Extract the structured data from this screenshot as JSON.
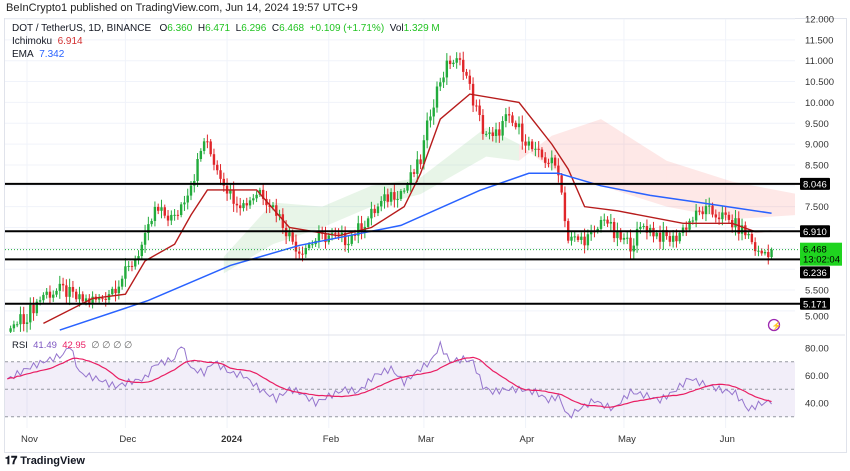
{
  "header": {
    "published": "BeInCrypto1 published on TradingView.com, Jun 14, 2024 19:57 UTC+9"
  },
  "legend": {
    "symbol": "DOT / TetherUS, 1D, BINANCE",
    "o_label": "O",
    "o": "6.360",
    "h_label": "H",
    "h": "6.471",
    "l_label": "L",
    "l": "6.296",
    "c_label": "C",
    "c": "6.468",
    "change": "+0.109 (+1.71%)",
    "vol_label": "Vol",
    "vol": "1.329 M",
    "ichimoku_label": "Ichimoku",
    "ichimoku": "6.914",
    "ema_label": "EMA",
    "ema": "7.342"
  },
  "rsi_legend": {
    "label": "RSI",
    "value": "41.49",
    "ma": "42.95",
    "extra": "∅ ∅ ∅ ∅"
  },
  "price_axis": [
    "12.000",
    "11.500",
    "11.000",
    "10.500",
    "10.000",
    "9.500",
    "9.000",
    "8.500",
    "7.500",
    "5.500",
    "5.000"
  ],
  "rsi_axis": [
    "80.00",
    "60.00",
    "40.00"
  ],
  "time_axis": [
    {
      "label": "Nov",
      "day": 0
    },
    {
      "label": "Dec",
      "day": 30
    },
    {
      "label": "2024",
      "day": 61,
      "bold": true
    },
    {
      "label": "Feb",
      "day": 92
    },
    {
      "label": "Mar",
      "day": 121
    },
    {
      "label": "Apr",
      "day": 152
    },
    {
      "label": "May",
      "day": 182
    },
    {
      "label": "Jun",
      "day": 213
    }
  ],
  "levels": [
    "8.046",
    "6.910",
    "6.236",
    "5.171"
  ],
  "current_price": {
    "price": "6.468",
    "countdown": "13:02:04"
  },
  "footer": {
    "brand": "TradingView"
  },
  "colors": {
    "up": "#22ab3c",
    "down": "#e0262a",
    "ema": "#2962ff",
    "base": "#b71c1c",
    "rsi": "#9575cd",
    "rsi_ma": "#e91e63",
    "price_tag": "#1fd41f"
  },
  "chart_data": {
    "type": "candlestick",
    "title": "DOT / TetherUS, 1D, BINANCE",
    "x_unit": "days since 2023-11-01",
    "ylim": [
      4.8,
      12.2
    ],
    "close": [
      [
        -6,
        4.5
      ],
      [
        0,
        4.9
      ],
      [
        5,
        5.4
      ],
      [
        11,
        5.5
      ],
      [
        16,
        5.25
      ],
      [
        22,
        5.25
      ],
      [
        27,
        5.6
      ],
      [
        31,
        6.0
      ],
      [
        36,
        6.7
      ],
      [
        39,
        7.4
      ],
      [
        45,
        7.2
      ],
      [
        51,
        8.25
      ],
      [
        54,
        9.1
      ],
      [
        57,
        8.6
      ],
      [
        62,
        7.8
      ],
      [
        66,
        7.55
      ],
      [
        71,
        7.9
      ],
      [
        76,
        7.4
      ],
      [
        80,
        6.8
      ],
      [
        83,
        6.45
      ],
      [
        88,
        6.7
      ],
      [
        92,
        6.8
      ],
      [
        97,
        6.7
      ],
      [
        101,
        6.95
      ],
      [
        106,
        7.4
      ],
      [
        111,
        7.8
      ],
      [
        115,
        7.9
      ],
      [
        120,
        8.6
      ],
      [
        123,
        9.8
      ],
      [
        126,
        10.55
      ],
      [
        129,
        11.0
      ],
      [
        133,
        10.9
      ],
      [
        136,
        10.05
      ],
      [
        139,
        9.35
      ],
      [
        142,
        9.1
      ],
      [
        146,
        9.6
      ],
      [
        150,
        9.35
      ],
      [
        155,
        8.75
      ],
      [
        159,
        8.6
      ],
      [
        162,
        8.4
      ],
      [
        165,
        6.7
      ],
      [
        168,
        6.7
      ],
      [
        173,
        6.8
      ],
      [
        176,
        7.3
      ],
      [
        179,
        6.8
      ],
      [
        184,
        6.6
      ],
      [
        188,
        7.05
      ],
      [
        193,
        6.8
      ],
      [
        197,
        6.7
      ],
      [
        202,
        7.15
      ],
      [
        206,
        7.4
      ],
      [
        211,
        7.3
      ],
      [
        216,
        7.05
      ],
      [
        220,
        6.8
      ],
      [
        223,
        6.36
      ],
      [
        227,
        6.468
      ]
    ],
    "ema": [
      [
        10,
        4.54
      ],
      [
        37,
        5.25
      ],
      [
        62,
        6.09
      ],
      [
        83,
        6.57
      ],
      [
        114,
        7.05
      ],
      [
        138,
        7.89
      ],
      [
        153,
        8.3
      ],
      [
        162,
        8.3
      ],
      [
        175,
        8.0
      ],
      [
        190,
        7.77
      ],
      [
        205,
        7.6
      ],
      [
        227,
        7.342
      ]
    ],
    "ichimoku_base": [
      [
        5,
        4.7
      ],
      [
        20,
        5.3
      ],
      [
        30,
        5.4
      ],
      [
        36,
        6.2
      ],
      [
        45,
        6.6
      ],
      [
        50,
        7.3
      ],
      [
        55,
        7.9
      ],
      [
        70,
        7.9
      ],
      [
        80,
        7.0
      ],
      [
        95,
        6.8
      ],
      [
        105,
        7.0
      ],
      [
        115,
        7.5
      ],
      [
        120,
        8.3
      ],
      [
        126,
        9.6
      ],
      [
        135,
        10.2
      ],
      [
        150,
        10.0
      ],
      [
        160,
        9.0
      ],
      [
        165,
        8.4
      ],
      [
        170,
        7.5
      ],
      [
        180,
        7.4
      ],
      [
        200,
        7.1
      ],
      [
        215,
        7.1
      ],
      [
        222,
        6.9
      ],
      [
        227,
        6.914
      ]
    ],
    "cloud": [
      [
        60,
        6.3,
        5.9
      ],
      [
        75,
        7.6,
        6.6
      ],
      [
        90,
        7.5,
        7.0
      ],
      [
        105,
        8.0,
        7.5
      ],
      [
        120,
        8.2,
        7.8
      ],
      [
        140,
        9.4,
        8.7
      ],
      [
        150,
        9.0,
        8.6
      ],
      [
        160,
        8.4,
        9.2
      ],
      [
        175,
        8.0,
        9.6
      ],
      [
        195,
        7.5,
        8.6
      ],
      [
        215,
        7.2,
        8.1
      ],
      [
        235,
        7.3,
        7.8
      ]
    ],
    "rsi": [
      [
        -6,
        57
      ],
      [
        0,
        65
      ],
      [
        5,
        70
      ],
      [
        11,
        75
      ],
      [
        13,
        82
      ],
      [
        16,
        62
      ],
      [
        22,
        57
      ],
      [
        27,
        52
      ],
      [
        31,
        55
      ],
      [
        36,
        58
      ],
      [
        39,
        68
      ],
      [
        45,
        72
      ],
      [
        47,
        83
      ],
      [
        50,
        65
      ],
      [
        54,
        62
      ],
      [
        57,
        70
      ],
      [
        62,
        62
      ],
      [
        66,
        60
      ],
      [
        71,
        50
      ],
      [
        76,
        43
      ],
      [
        80,
        50
      ],
      [
        83,
        48
      ],
      [
        88,
        40
      ],
      [
        92,
        45
      ],
      [
        97,
        50
      ],
      [
        101,
        48
      ],
      [
        106,
        60
      ],
      [
        111,
        65
      ],
      [
        115,
        55
      ],
      [
        120,
        65
      ],
      [
        123,
        70
      ],
      [
        126,
        82
      ],
      [
        129,
        70
      ],
      [
        133,
        72
      ],
      [
        136,
        70
      ],
      [
        139,
        52
      ],
      [
        142,
        48
      ],
      [
        146,
        50
      ],
      [
        150,
        50
      ],
      [
        155,
        48
      ],
      [
        159,
        42
      ],
      [
        162,
        45
      ],
      [
        165,
        30
      ],
      [
        168,
        35
      ],
      [
        173,
        42
      ],
      [
        176,
        38
      ],
      [
        179,
        36
      ],
      [
        184,
        48
      ],
      [
        188,
        46
      ],
      [
        193,
        42
      ],
      [
        197,
        48
      ],
      [
        202,
        58
      ],
      [
        206,
        54
      ],
      [
        211,
        50
      ],
      [
        216,
        47
      ],
      [
        220,
        35
      ],
      [
        223,
        39
      ],
      [
        227,
        41.49
      ]
    ],
    "rsi_bands": [
      70,
      50,
      30
    ]
  }
}
